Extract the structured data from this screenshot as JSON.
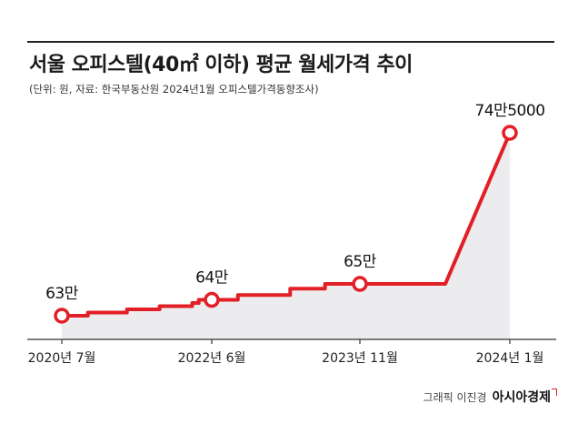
{
  "header": {
    "title": "서울 오피스텔(40㎡ 이하) 평균 월세가격 추이",
    "subtitle": "(단위: 원, 자료: 한국부동산원 2024년1월 오피스텔가격동향조사)"
  },
  "credit": {
    "author": "그래픽 이진경",
    "brand": "아시아경제"
  },
  "colors": {
    "line": "#e21f26",
    "area": "#ececee",
    "axis": "#333333"
  },
  "chart_data": {
    "type": "line",
    "title": "서울 오피스텔(40㎡ 이하) 평균 월세가격 추이",
    "subtitle": "(단위: 원, 자료: 한국부동산원 2024년1월 오피스텔가격동향조사)",
    "xlabel": "",
    "ylabel": "",
    "unit": "원",
    "x_ticks": [
      "2020년 7월",
      "2022년 6월",
      "2023년 11월",
      "2024년 1월"
    ],
    "x": [
      "2020-07",
      "2020-08",
      "2020-09",
      "2020-10",
      "2020-11",
      "2020-12",
      "2021-01",
      "2021-02",
      "2021-03",
      "2021-04",
      "2021-05",
      "2021-06",
      "2021-07",
      "2021-08",
      "2021-09",
      "2021-10",
      "2021-11",
      "2021-12",
      "2022-01",
      "2022-02",
      "2022-03",
      "2022-04",
      "2022-05",
      "2022-06",
      "2022-07",
      "2022-08",
      "2022-09",
      "2022-10",
      "2022-11",
      "2022-12",
      "2023-01",
      "2023-02",
      "2023-03",
      "2023-04",
      "2023-05",
      "2023-06",
      "2023-07",
      "2023-08",
      "2023-09",
      "2023-10",
      "2023-11",
      "2023-12",
      "2024-01"
    ],
    "values": [
      630000,
      630000,
      630000,
      630000,
      632000,
      632000,
      632000,
      632000,
      632000,
      632000,
      634000,
      634000,
      634000,
      634000,
      634000,
      636000,
      636000,
      636000,
      636000,
      636000,
      638000,
      640000,
      640000,
      640000,
      640000,
      640000,
      643000,
      643000,
      643000,
      643000,
      643000,
      643000,
      647000,
      647000,
      647000,
      647000,
      650000,
      650000,
      650000,
      650000,
      650000,
      650000,
      745000
    ],
    "markers": [
      {
        "x": "2020-07",
        "label": "63만"
      },
      {
        "x": "2022-06",
        "label": "64만"
      },
      {
        "x": "2023-11",
        "label": "65만"
      },
      {
        "x": "2024-01",
        "label": "74만5000"
      }
    ],
    "ylim": [
      600000,
      760000
    ],
    "grid": false,
    "area_fill": true
  }
}
